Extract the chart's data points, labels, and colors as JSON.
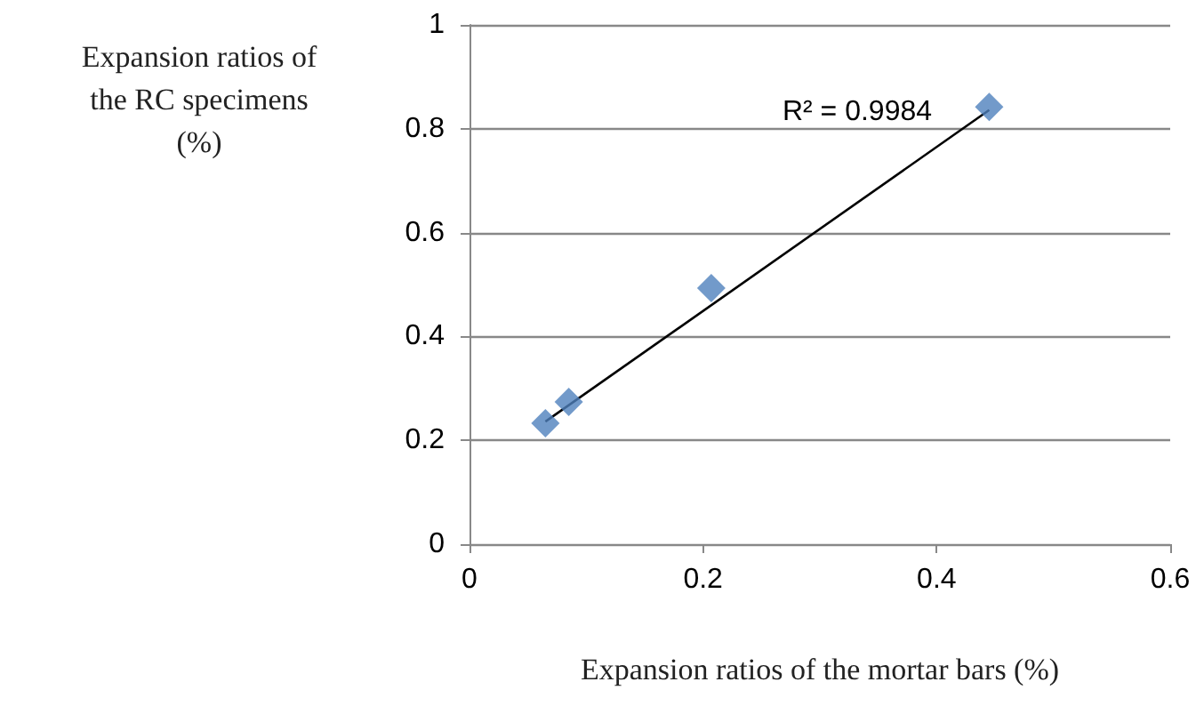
{
  "chart_data": {
    "type": "scatter",
    "xlabel": "Expansion ratios of the mortar bars (%)",
    "ylabel": "Expansion ratios of\nthe RC specimens\n(%)",
    "series": [
      {
        "color": "#4f81bd",
        "x": [
          0.065,
          0.085,
          0.207,
          0.445
        ],
        "values": [
          0.233,
          0.274,
          0.493,
          0.842
        ],
        "marker": "diamond"
      },
      {
        "type": "line",
        "color": "#000000",
        "x": [
          0.065,
          0.445
        ],
        "values": [
          0.236,
          0.836
        ],
        "marker": "none",
        "line_style": "solid"
      }
    ],
    "annotations": [
      "R² = 0.9984"
    ],
    "xlim": [
      0,
      0.6
    ],
    "xticks": [
      0,
      0.2,
      0.4,
      0.6
    ],
    "ylim": [
      0,
      1
    ],
    "yticks": [
      0,
      0.2,
      0.4,
      0.6,
      0.8,
      1
    ],
    "grid": "y"
  }
}
